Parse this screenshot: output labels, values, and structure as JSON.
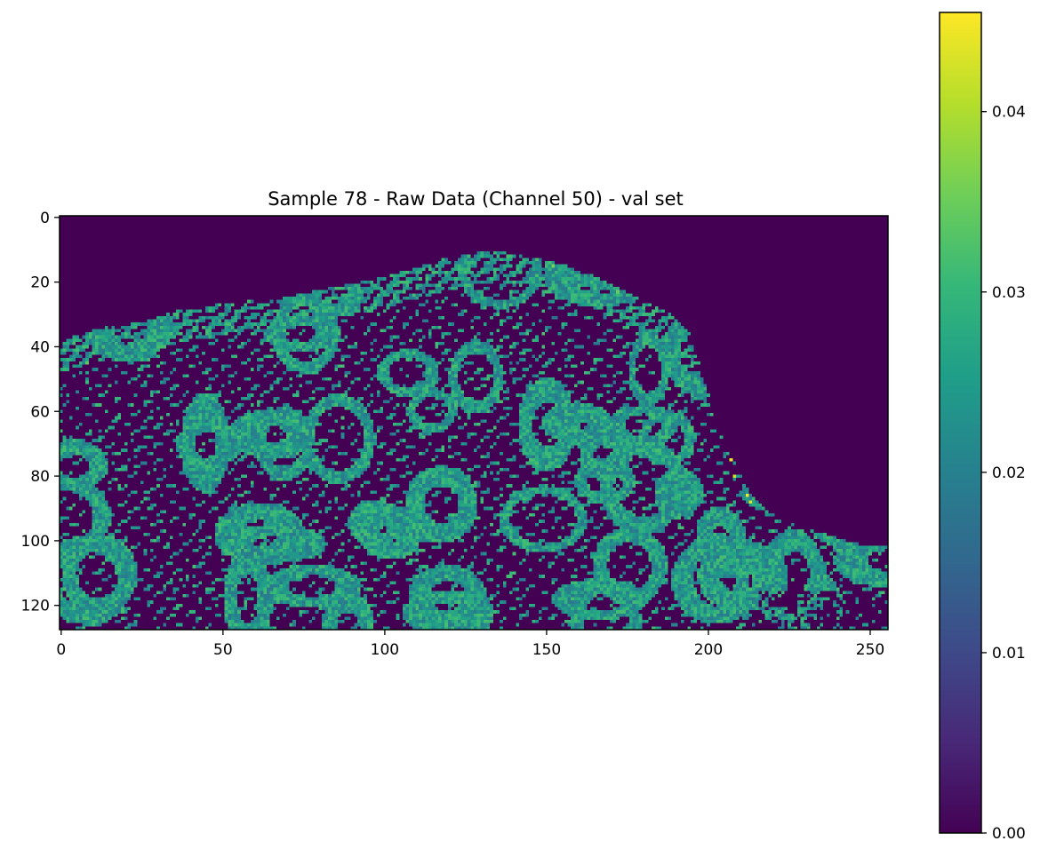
{
  "chart_data": {
    "type": "heatmap",
    "title": "Sample 78 - Raw Data (Channel 50) - val set",
    "xlabel": "",
    "ylabel": "",
    "image_shape": [
      128,
      256
    ],
    "xlim": [
      0,
      256
    ],
    "ylim": [
      128,
      0
    ],
    "x_ticks": [
      0,
      50,
      100,
      150,
      200,
      250
    ],
    "y_ticks": [
      0,
      20,
      40,
      60,
      80,
      100,
      120
    ],
    "colormap": "viridis",
    "colorbar": {
      "range": [
        0.0,
        0.0455
      ],
      "ticks": [
        0.0,
        0.01,
        0.02,
        0.03,
        0.04
      ],
      "tick_labels": [
        "0.00",
        "0.01",
        "0.02",
        "0.03",
        "0.04"
      ]
    },
    "background_value": 0.0,
    "typical_tissue_value_range": [
      0.018,
      0.032
    ],
    "tissue_upper_boundary": [
      [
        0,
        38
      ],
      [
        6,
        36
      ],
      [
        14,
        34
      ],
      [
        22,
        33
      ],
      [
        30,
        31
      ],
      [
        38,
        28
      ],
      [
        48,
        27
      ],
      [
        58,
        26
      ],
      [
        68,
        25
      ],
      [
        78,
        23
      ],
      [
        88,
        21
      ],
      [
        98,
        19
      ],
      [
        108,
        16
      ],
      [
        118,
        13
      ],
      [
        128,
        11
      ],
      [
        138,
        11
      ],
      [
        148,
        13
      ],
      [
        156,
        15
      ],
      [
        164,
        18
      ],
      [
        172,
        22
      ],
      [
        180,
        26
      ],
      [
        188,
        30
      ],
      [
        194,
        36
      ],
      [
        197,
        45
      ],
      [
        200,
        55
      ],
      [
        203,
        65
      ],
      [
        206,
        72
      ],
      [
        209,
        78
      ],
      [
        213,
        86
      ],
      [
        218,
        91
      ],
      [
        226,
        95
      ],
      [
        236,
        98
      ],
      [
        246,
        101
      ],
      [
        256,
        102
      ]
    ],
    "bright_spots": [
      {
        "x": 207,
        "y": 75,
        "value": 0.044
      },
      {
        "x": 208,
        "y": 80,
        "value": 0.042
      },
      {
        "x": 212,
        "y": 86,
        "value": 0.045
      },
      {
        "x": 213,
        "y": 88,
        "value": 0.043
      },
      {
        "x": 152,
        "y": 15,
        "value": 0.036
      },
      {
        "x": 149,
        "y": 36,
        "value": 0.033
      },
      {
        "x": 8,
        "y": 45,
        "value": 0.034
      },
      {
        "x": 172,
        "y": 23,
        "value": 0.035
      }
    ]
  }
}
